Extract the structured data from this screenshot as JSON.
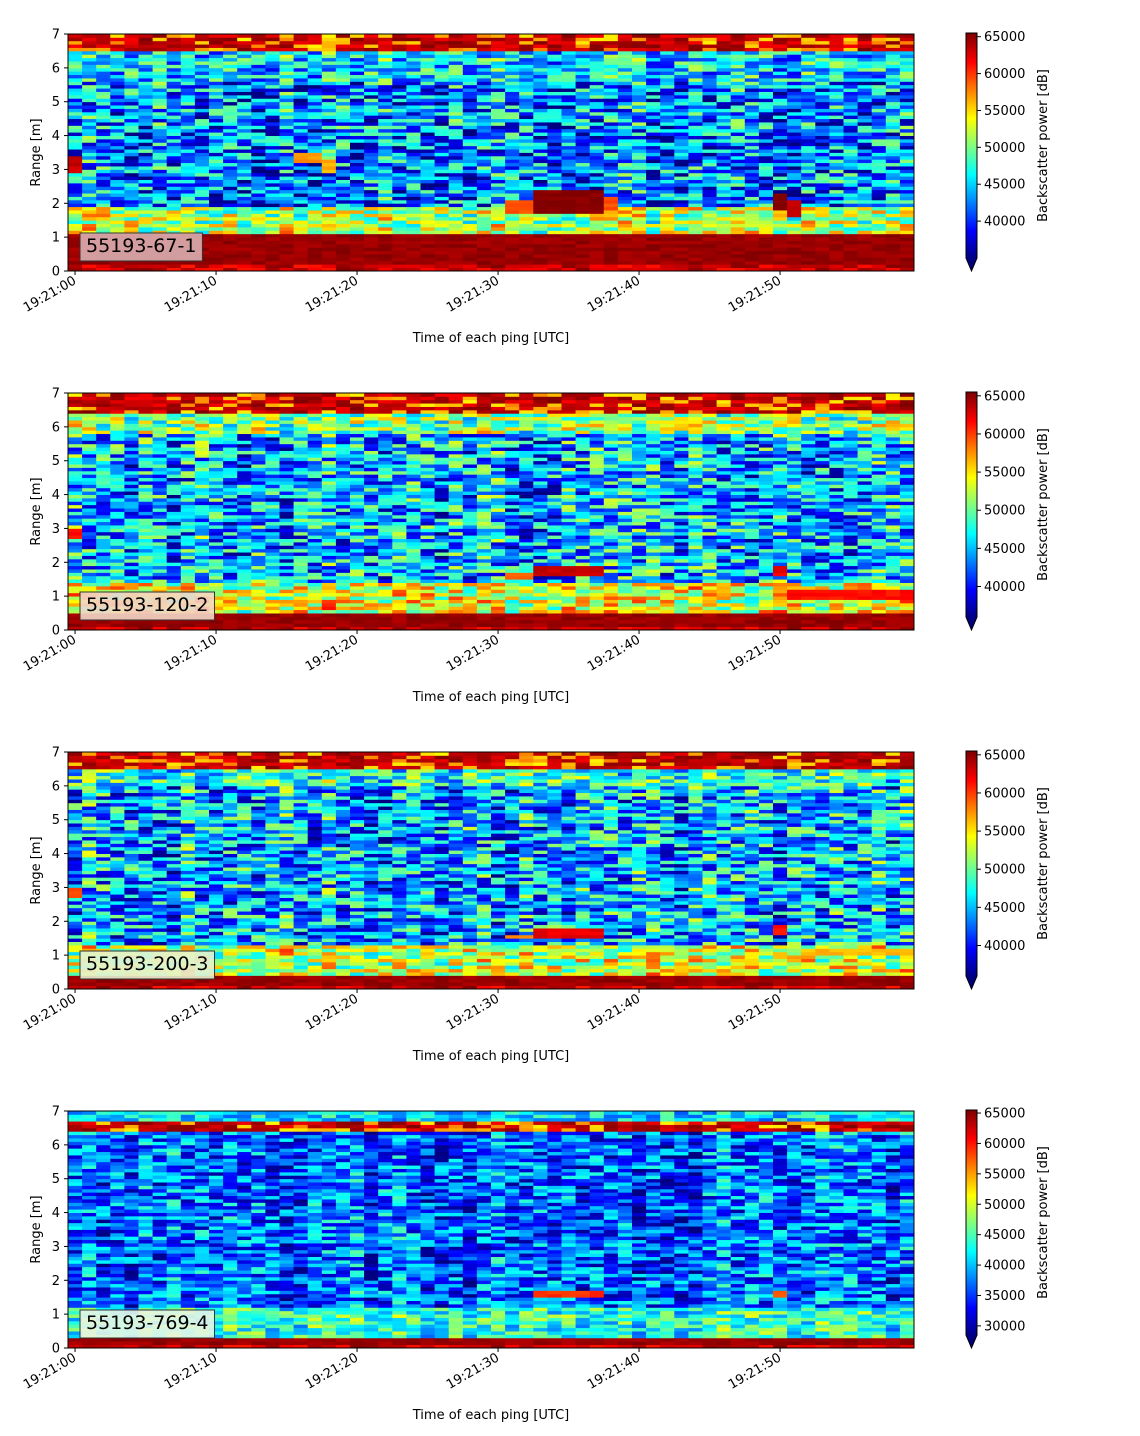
{
  "chart_data": [
    {
      "type": "heatmap",
      "panel_label": "55193-67-1",
      "panel_label_color": "#d9aeb0",
      "xlabel": "Time of each ping [UTC]",
      "ylabel": "Range [m]",
      "colorbar_label": "Backscatter power [dB]",
      "x_tick_labels": [
        "19:21:00",
        "19:21:10",
        "19:21:20",
        "19:21:30",
        "19:21:40",
        "19:21:50"
      ],
      "x_tick_seconds": [
        0,
        10,
        20,
        30,
        40,
        50
      ],
      "xlim_seconds": [
        -0.5,
        59.5
      ],
      "y_tick_labels": [
        "0",
        "1",
        "2",
        "3",
        "4",
        "5",
        "6",
        "7"
      ],
      "y_ticks": [
        0,
        1,
        2,
        3,
        4,
        5,
        6,
        7
      ],
      "ylim": [
        0,
        7
      ],
      "colorbar_ticks": [
        40000,
        45000,
        50000,
        55000,
        60000,
        65000
      ],
      "colorbar_tick_labels": [
        "40000",
        "45000",
        "50000",
        "55000",
        "60000",
        "65000"
      ],
      "colorbar_range": [
        35000,
        65500
      ],
      "colormap": "jet",
      "colorbar_extend": "min",
      "bottom_band": [
        0.2,
        1.1
      ],
      "top_band": [
        6.5,
        7.0
      ],
      "near_band_top": 1.9,
      "upper_band_bottom": 5.6,
      "mid_level": 0.25,
      "near_level": 0.55,
      "upper_level": 0.35,
      "noise": 0.26,
      "features": [
        {
          "x0": -0.5,
          "x1": 0.5,
          "y0": 2.9,
          "y1": 3.4,
          "value": 64000
        },
        {
          "x0": 15.5,
          "x1": 17.5,
          "y0": 3.2,
          "y1": 3.5,
          "value": 58000
        },
        {
          "x0": 17.5,
          "x1": 18.5,
          "y0": 2.9,
          "y1": 3.3,
          "value": 57000
        },
        {
          "x0": 30.5,
          "x1": 32.5,
          "y0": 1.7,
          "y1": 2.1,
          "value": 60000
        },
        {
          "x0": 32.5,
          "x1": 37.5,
          "y0": 1.7,
          "y1": 2.4,
          "value": 66000
        },
        {
          "x0": 37.5,
          "x1": 38.5,
          "y0": 1.8,
          "y1": 2.2,
          "value": 60000
        },
        {
          "x0": 49.5,
          "x1": 50.5,
          "y0": 1.8,
          "y1": 2.3,
          "value": 66000
        },
        {
          "x0": 50.5,
          "x1": 51.5,
          "y0": 1.6,
          "y1": 2.1,
          "value": 64000
        }
      ]
    },
    {
      "type": "heatmap",
      "panel_label": "55193-120-2",
      "panel_label_color": "#f2d7c7",
      "xlabel": "Time of each ping [UTC]",
      "ylabel": "Range [m]",
      "colorbar_label": "Backscatter power [dB]",
      "x_tick_labels": [
        "19:21:00",
        "19:21:10",
        "19:21:20",
        "19:21:30",
        "19:21:40",
        "19:21:50"
      ],
      "x_tick_seconds": [
        0,
        10,
        20,
        30,
        40,
        50
      ],
      "xlim_seconds": [
        -0.5,
        59.5
      ],
      "y_tick_labels": [
        "0",
        "1",
        "2",
        "3",
        "4",
        "5",
        "6",
        "7"
      ],
      "y_ticks": [
        0,
        1,
        2,
        3,
        4,
        5,
        6,
        7
      ],
      "ylim": [
        0,
        7
      ],
      "colorbar_ticks": [
        40000,
        45000,
        50000,
        55000,
        60000,
        65000
      ],
      "colorbar_tick_labels": [
        "40000",
        "45000",
        "50000",
        "55000",
        "60000",
        "65000"
      ],
      "colorbar_range": [
        36000,
        65500
      ],
      "colormap": "jet",
      "colorbar_extend": "min",
      "bottom_band": [
        0.1,
        0.5
      ],
      "top_band": [
        6.4,
        7.0
      ],
      "near_band_top": 1.4,
      "upper_band_bottom": 5.8,
      "mid_level": 0.3,
      "near_level": 0.6,
      "upper_level": 0.5,
      "noise": 0.26,
      "features": [
        {
          "x0": -0.5,
          "x1": 0.5,
          "y0": 2.7,
          "y1": 3.0,
          "value": 62000
        },
        {
          "x0": 30.5,
          "x1": 32.5,
          "y0": 1.55,
          "y1": 1.7,
          "value": 60000
        },
        {
          "x0": 32.5,
          "x1": 37.5,
          "y0": 1.6,
          "y1": 1.85,
          "value": 64000
        },
        {
          "x0": 49.5,
          "x1": 50.5,
          "y0": 1.6,
          "y1": 1.9,
          "value": 63000
        },
        {
          "x0": 50.5,
          "x1": 59.5,
          "y0": 0.95,
          "y1": 1.2,
          "value": 62000
        }
      ]
    },
    {
      "type": "heatmap",
      "panel_label": "55193-200-3",
      "panel_label_color": "#e6f2d0",
      "xlabel": "Time of each ping [UTC]",
      "ylabel": "Range [m]",
      "colorbar_label": "Backscatter power [dB]",
      "x_tick_labels": [
        "19:21:00",
        "19:21:10",
        "19:21:20",
        "19:21:30",
        "19:21:40",
        "19:21:50"
      ],
      "x_tick_seconds": [
        0,
        10,
        20,
        30,
        40,
        50
      ],
      "xlim_seconds": [
        -0.5,
        59.5
      ],
      "y_tick_labels": [
        "0",
        "1",
        "2",
        "3",
        "4",
        "5",
        "6",
        "7"
      ],
      "y_ticks": [
        0,
        1,
        2,
        3,
        4,
        5,
        6,
        7
      ],
      "ylim": [
        0,
        7
      ],
      "colorbar_ticks": [
        40000,
        45000,
        50000,
        55000,
        60000,
        65000
      ],
      "colorbar_tick_labels": [
        "40000",
        "45000",
        "50000",
        "55000",
        "60000",
        "65000"
      ],
      "colorbar_range": [
        36000,
        65500
      ],
      "colormap": "jet",
      "colorbar_extend": "min",
      "bottom_band": [
        0.1,
        0.4
      ],
      "top_band": [
        6.5,
        7.0
      ],
      "near_band_top": 1.3,
      "upper_band_bottom": 6.0,
      "mid_level": 0.3,
      "near_level": 0.58,
      "upper_level": 0.42,
      "noise": 0.26,
      "features": [
        {
          "x0": -0.5,
          "x1": 0.5,
          "y0": 2.7,
          "y1": 3.0,
          "value": 60000
        },
        {
          "x0": 30.5,
          "x1": 32.5,
          "y0": 1.5,
          "y1": 1.65,
          "value": 58000
        },
        {
          "x0": 32.5,
          "x1": 37.5,
          "y0": 1.55,
          "y1": 1.8,
          "value": 63000
        },
        {
          "x0": 49.5,
          "x1": 50.5,
          "y0": 1.6,
          "y1": 1.85,
          "value": 62000
        },
        {
          "x0": 52.5,
          "x1": 59.5,
          "y0": 1.0,
          "y1": 1.2,
          "value": 57000
        }
      ]
    },
    {
      "type": "heatmap",
      "panel_label": "55193-769-4",
      "panel_label_color": "#e6f5e6",
      "xlabel": "Time of each ping [UTC]",
      "ylabel": "Range [m]",
      "colorbar_label": "Backscatter power [dB]",
      "x_tick_labels": [
        "19:21:00",
        "19:21:10",
        "19:21:20",
        "19:21:30",
        "19:21:40",
        "19:21:50"
      ],
      "x_tick_seconds": [
        0,
        10,
        20,
        30,
        40,
        50
      ],
      "xlim_seconds": [
        -0.5,
        59.5
      ],
      "y_tick_labels": [
        "0",
        "1",
        "2",
        "3",
        "4",
        "5",
        "6",
        "7"
      ],
      "y_ticks": [
        0,
        1,
        2,
        3,
        4,
        5,
        6,
        7
      ],
      "ylim": [
        0,
        7
      ],
      "colorbar_ticks": [
        30000,
        35000,
        40000,
        45000,
        50000,
        55000,
        60000,
        65000
      ],
      "colorbar_tick_labels": [
        "30000",
        "35000",
        "40000",
        "45000",
        "50000",
        "55000",
        "60000",
        "65000"
      ],
      "colorbar_range": [
        28500,
        65500
      ],
      "colormap": "jet",
      "colorbar_extend": "min",
      "bottom_band": [
        0.1,
        0.3
      ],
      "top_band": [
        6.4,
        6.65
      ],
      "near_band_top": 1.2,
      "upper_band_bottom": 6.7,
      "mid_level": 0.22,
      "near_level": 0.42,
      "upper_level": 0.35,
      "noise": 0.2,
      "features": [
        {
          "x0": 32.5,
          "x1": 37.5,
          "y0": 1.5,
          "y1": 1.7,
          "value": 60000
        },
        {
          "x0": 49.5,
          "x1": 50.5,
          "y0": 1.55,
          "y1": 1.75,
          "value": 58000
        }
      ]
    }
  ]
}
